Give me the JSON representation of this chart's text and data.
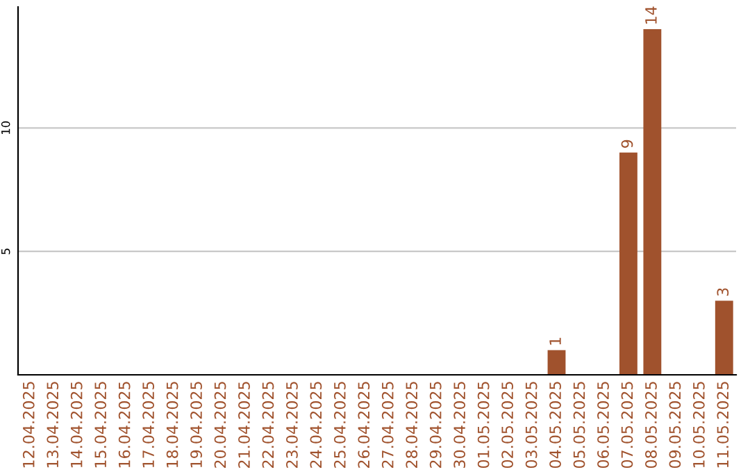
{
  "chart_data": {
    "type": "bar",
    "categories": [
      "12.04.2025",
      "13.04.2025",
      "14.04.2025",
      "15.04.2025",
      "16.04.2025",
      "17.04.2025",
      "18.04.2025",
      "19.04.2025",
      "20.04.2025",
      "21.04.2025",
      "22.04.2025",
      "23.04.2025",
      "24.04.2025",
      "25.04.2025",
      "26.04.2025",
      "27.04.2025",
      "28.04.2025",
      "29.04.2025",
      "30.04.2025",
      "01.05.2025",
      "02.05.2025",
      "03.05.2025",
      "04.05.2025",
      "05.05.2025",
      "06.05.2025",
      "07.05.2025",
      "08.05.2025",
      "09.05.2025",
      "10.05.2025",
      "11.05.2025"
    ],
    "values": [
      0,
      0,
      0,
      0,
      0,
      0,
      0,
      0,
      0,
      0,
      0,
      0,
      0,
      0,
      0,
      0,
      0,
      0,
      0,
      0,
      0,
      0,
      1,
      0,
      0,
      9,
      14,
      0,
      0,
      3
    ],
    "value_labels": [
      null,
      null,
      null,
      null,
      null,
      null,
      null,
      null,
      null,
      null,
      null,
      null,
      null,
      null,
      null,
      null,
      null,
      null,
      null,
      null,
      null,
      null,
      "1",
      null,
      null,
      "9",
      "14",
      null,
      null,
      "3"
    ],
    "color": "#a0522d",
    "ylim": [
      0,
      14.9
    ],
    "yticks": [
      5,
      10
    ],
    "grid": "y",
    "legend": false
  }
}
